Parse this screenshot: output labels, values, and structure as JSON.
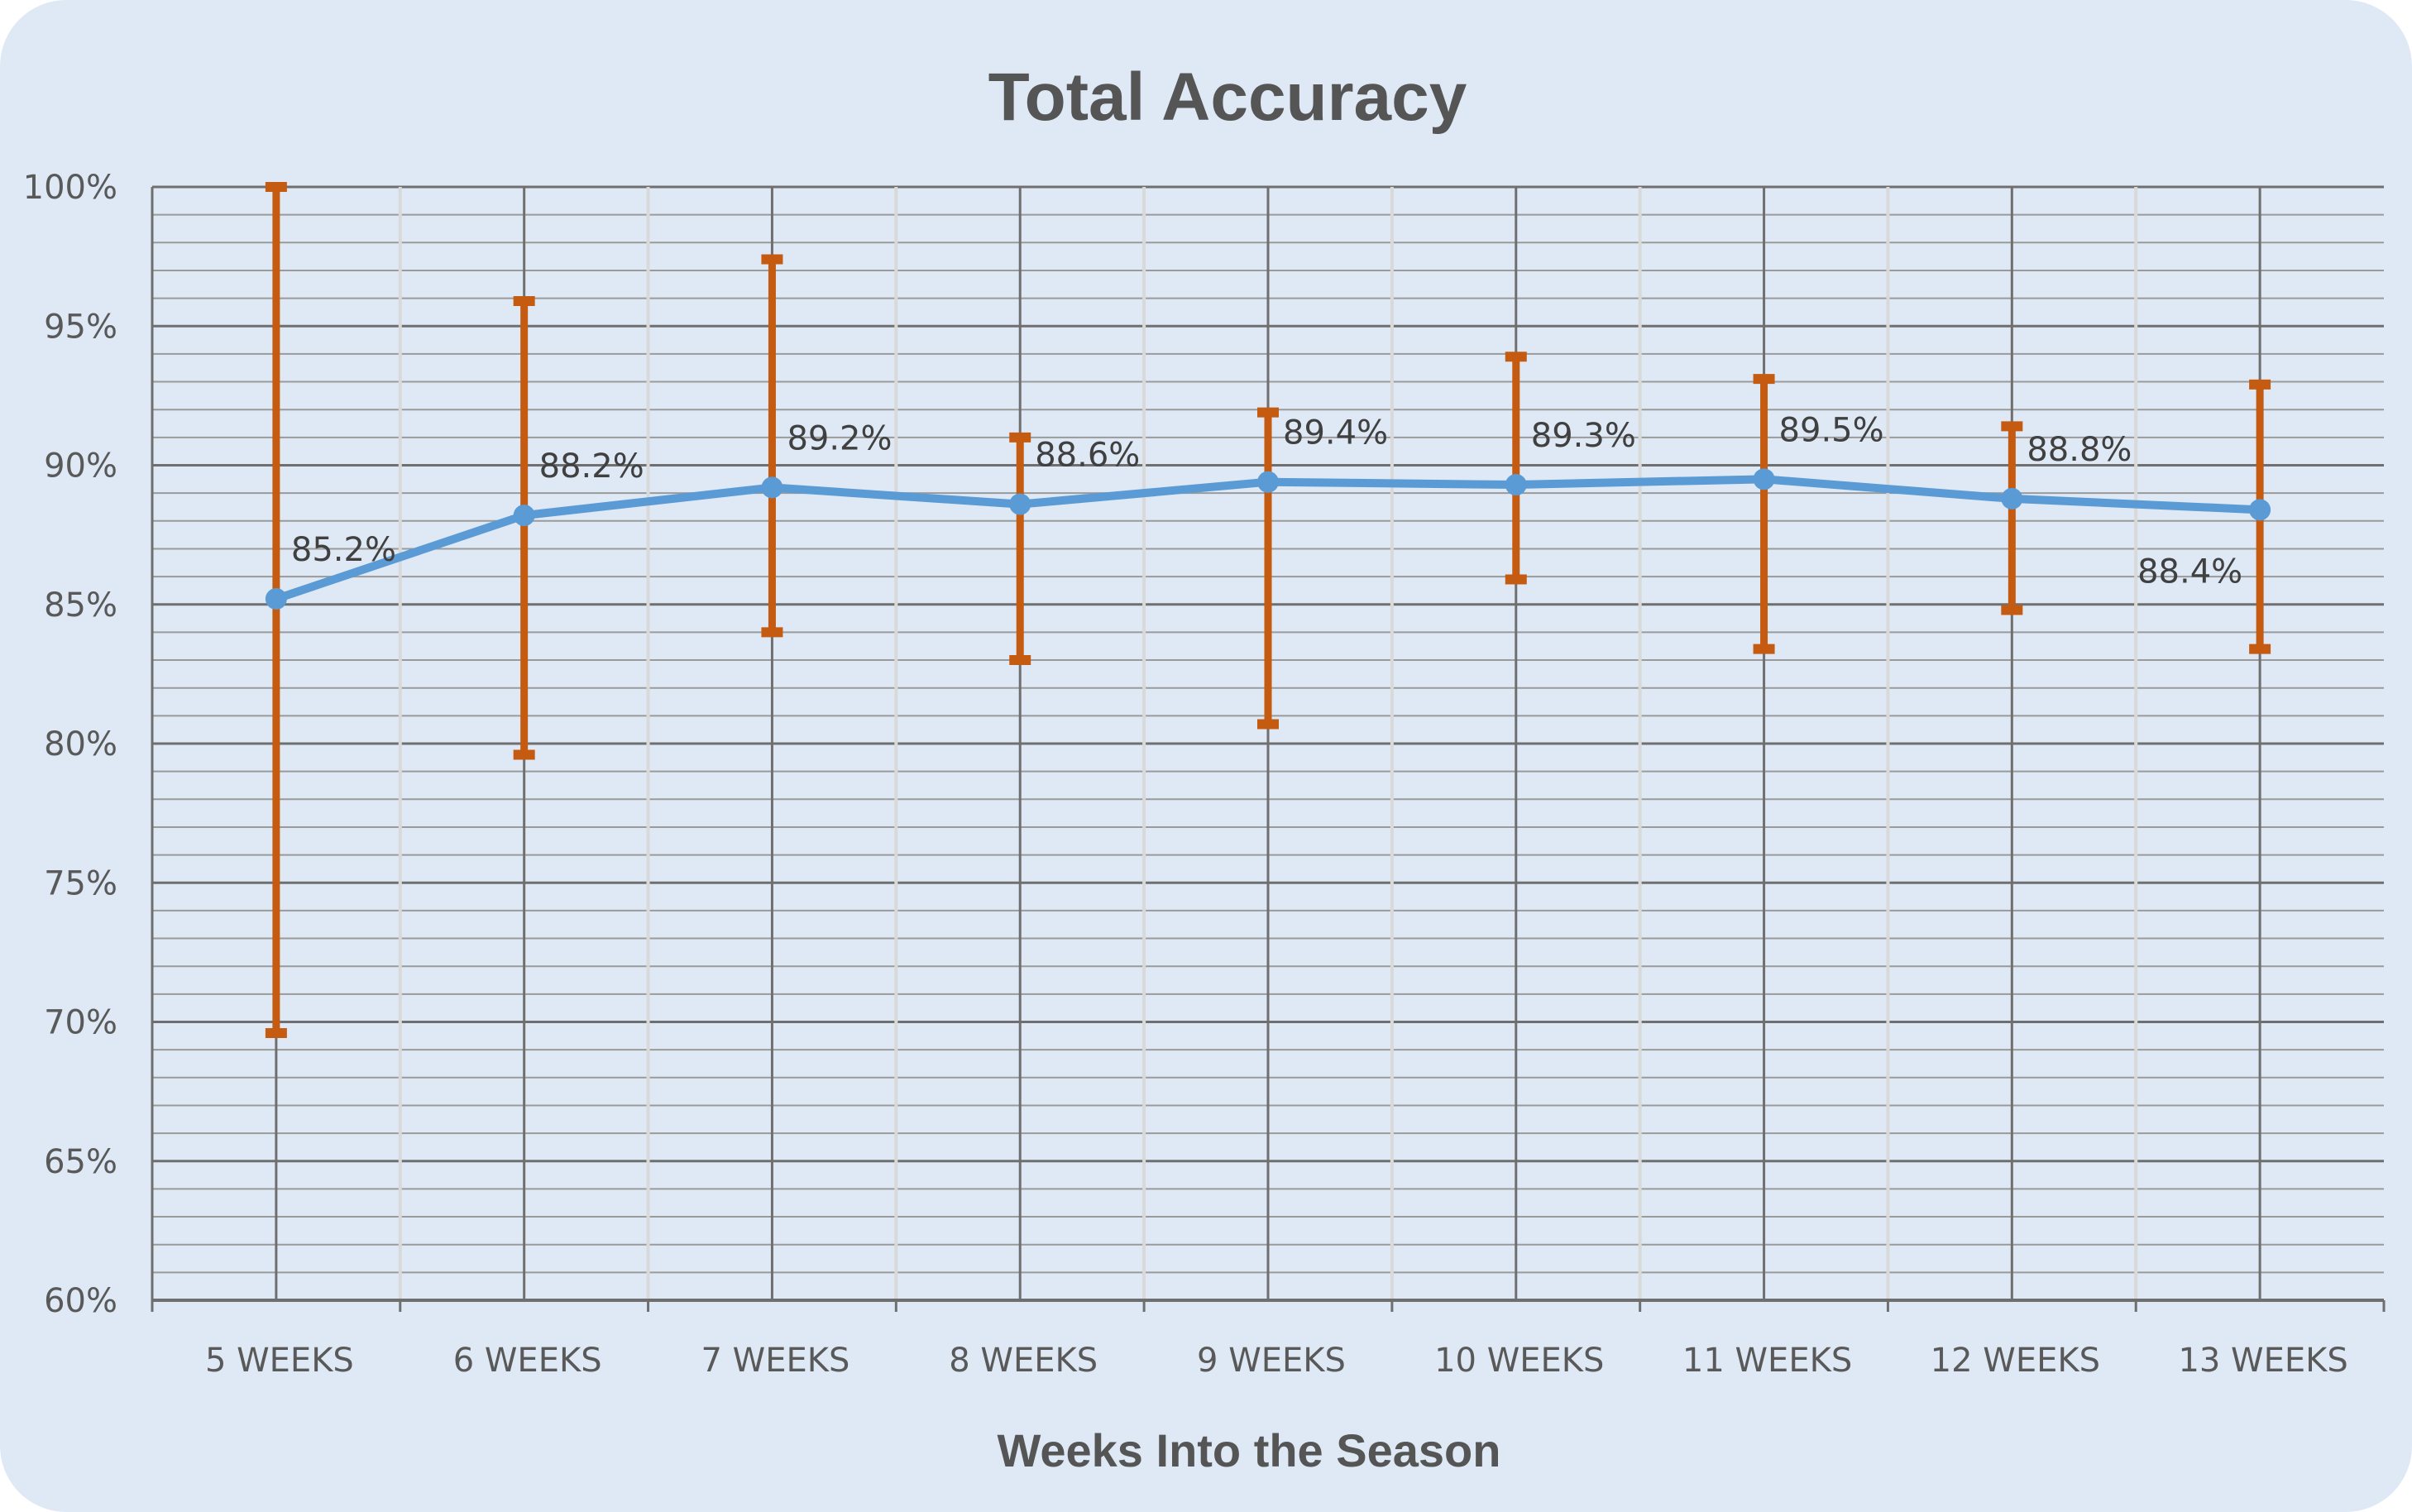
{
  "chart_data": {
    "type": "line",
    "title": "Total Accuracy",
    "xlabel": "Weeks Into the Season",
    "ylabel": "",
    "categories": [
      "5 WEEKS",
      "6 WEEKS",
      "7 WEEKS",
      "8 WEEKS",
      "9 WEEKS",
      "10 WEEKS",
      "11 WEEKS",
      "12 WEEKS",
      "13 WEEKS"
    ],
    "series": [
      {
        "values": [
          85.2,
          88.2,
          89.2,
          88.6,
          89.4,
          89.3,
          89.5,
          88.8,
          88.4
        ],
        "labels": [
          "85.2%",
          "88.2%",
          "89.2%",
          "88.6%",
          "89.4%",
          "89.3%",
          "89.5%",
          "88.8%",
          "88.4%"
        ],
        "error_high": [
          100.0,
          95.9,
          97.4,
          91.0,
          91.9,
          93.9,
          93.1,
          91.4,
          92.9
        ],
        "error_low": [
          69.6,
          79.6,
          84.0,
          83.0,
          80.7,
          85.9,
          83.4,
          84.8,
          83.4
        ]
      }
    ],
    "ylim": [
      60,
      100
    ],
    "yticks": [
      "60%",
      "65%",
      "70%",
      "75%",
      "80%",
      "85%",
      "90%",
      "95%",
      "100%"
    ],
    "grid": true,
    "colors": {
      "background": "#dee9f5",
      "line": "#5b9bd5",
      "error_bars": "#c55a11",
      "major_grid": "#6f6f6f",
      "minor_grid": "#9a9a9a",
      "vertical_minor_grid": "#d9d9d9"
    }
  }
}
